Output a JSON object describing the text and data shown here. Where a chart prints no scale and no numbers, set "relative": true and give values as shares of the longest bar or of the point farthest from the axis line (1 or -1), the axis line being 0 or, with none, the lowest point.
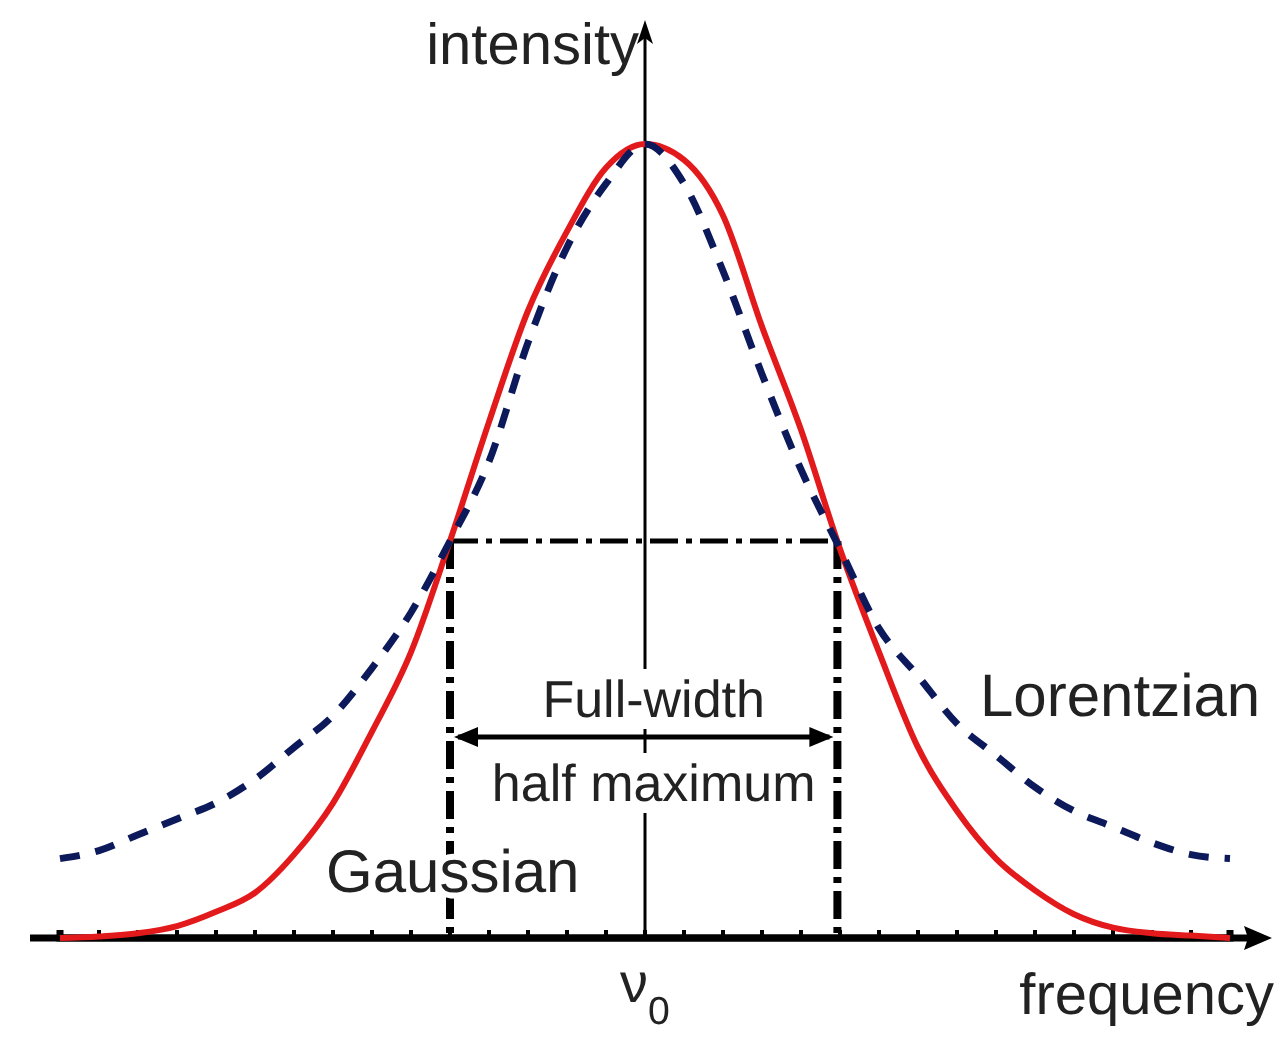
{
  "chart_data": {
    "type": "line",
    "xlabel": "frequency",
    "ylabel": "intensity",
    "relative": true,
    "categories": [
      null,
      null,
      null,
      null,
      null,
      null,
      null,
      null,
      null,
      null,
      null,
      null,
      null,
      null,
      null,
      null,
      null,
      null,
      null,
      null,
      null,
      null,
      null,
      null,
      null,
      null,
      null,
      null,
      null,
      null,
      null
    ],
    "series": [
      {
        "name": "Gaussian",
        "color": "#e31a1c",
        "line_style": "solid",
        "values": [
          0.0,
          0.002,
          0.006,
          0.015,
          0.033,
          0.057,
          0.105,
          0.17,
          0.26,
          0.36,
          0.5,
          0.65,
          0.79,
          0.89,
          0.97,
          1.0,
          0.98,
          0.91,
          0.77,
          0.64,
          0.49,
          0.36,
          0.24,
          0.16,
          0.1,
          0.06,
          0.03,
          0.013,
          0.006,
          0.003,
          0.0
        ]
      },
      {
        "name": "Lorentzian",
        "color": "#0c1a5b",
        "line_style": "dashed",
        "values": [
          0.1,
          0.11,
          0.13,
          0.15,
          0.17,
          0.2,
          0.24,
          0.28,
          0.34,
          0.41,
          0.5,
          0.6,
          0.75,
          0.87,
          0.95,
          1.0,
          0.95,
          0.84,
          0.71,
          0.59,
          0.49,
          0.39,
          0.33,
          0.27,
          0.23,
          0.19,
          0.16,
          0.14,
          0.12,
          0.105,
          0.1
        ]
      }
    ],
    "ref_lines": [
      {
        "axis": "y",
        "value": 0.5,
        "color": "#000000",
        "line_style": "dashed"
      }
    ],
    "annotations": [
      "ν$_{0}$",
      "Full-width half maximum"
    ]
  }
}
